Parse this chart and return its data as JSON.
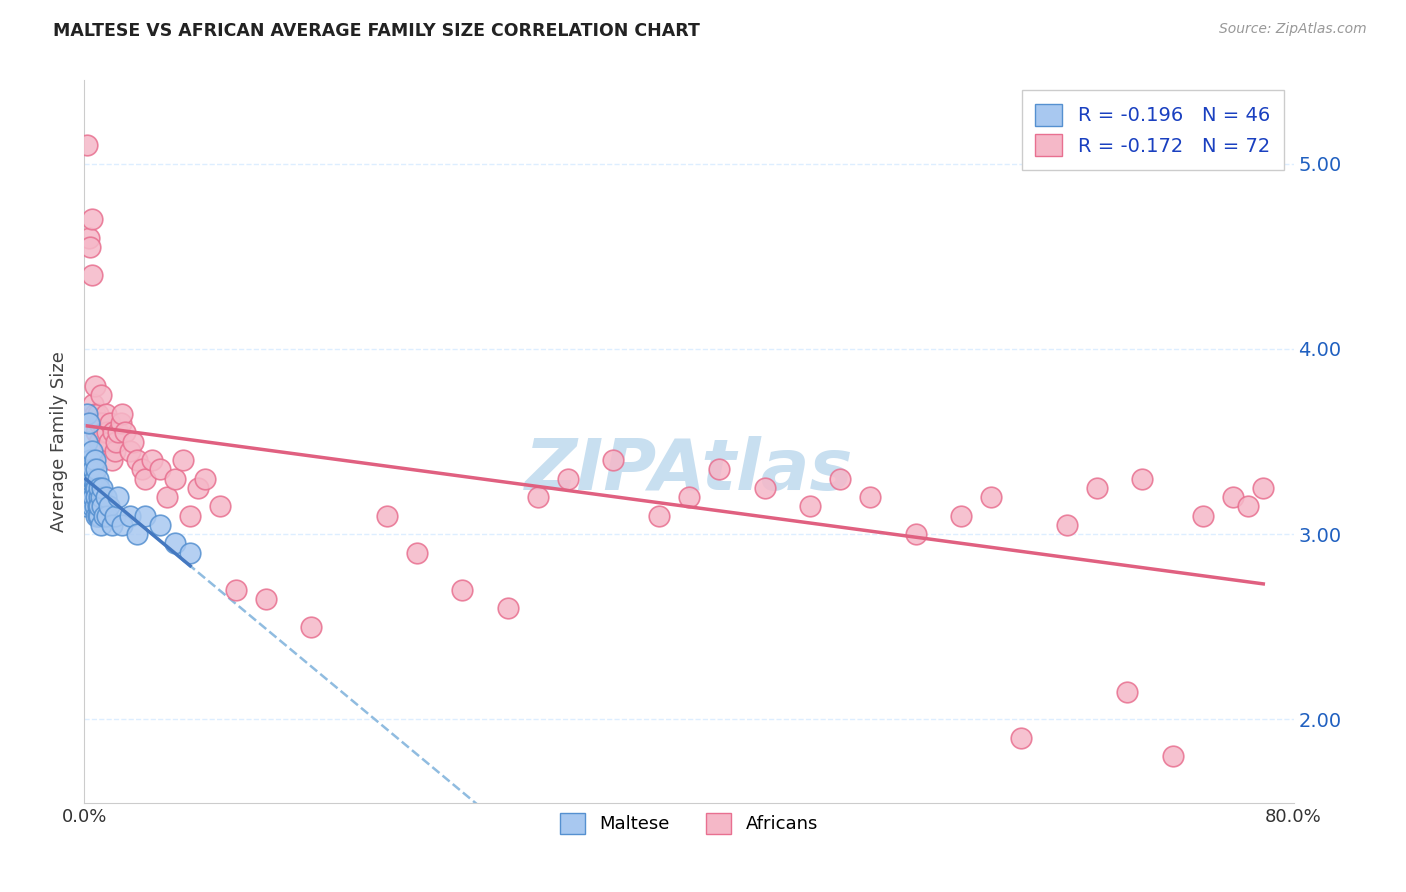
{
  "title": "MALTESE VS AFRICAN AVERAGE FAMILY SIZE CORRELATION CHART",
  "source": "Source: ZipAtlas.com",
  "ylabel": "Average Family Size",
  "xlim": [
    0.0,
    0.8
  ],
  "ylim": [
    1.55,
    5.45
  ],
  "yticks": [
    2.0,
    3.0,
    4.0,
    5.0
  ],
  "xtick_positions": [
    0.0,
    0.1,
    0.2,
    0.3,
    0.4,
    0.5,
    0.6,
    0.7,
    0.8
  ],
  "xtick_labels": [
    "0.0%",
    "",
    "",
    "",
    "",
    "",
    "",
    "",
    "80.0%"
  ],
  "maltese_color": "#a8c8f0",
  "african_color": "#f5b8c8",
  "maltese_edge_color": "#5590d0",
  "african_edge_color": "#e87090",
  "maltese_line_color": "#4478c0",
  "african_line_color": "#e06080",
  "dashed_line_color": "#90bce0",
  "grid_color": "#ddeeff",
  "watermark_color": "#c8dff0",
  "maltese_x": [
    0.001,
    0.002,
    0.002,
    0.003,
    0.003,
    0.004,
    0.004,
    0.005,
    0.005,
    0.005,
    0.006,
    0.006,
    0.006,
    0.007,
    0.007,
    0.007,
    0.007,
    0.008,
    0.008,
    0.008,
    0.008,
    0.009,
    0.009,
    0.009,
    0.01,
    0.01,
    0.01,
    0.01,
    0.011,
    0.011,
    0.012,
    0.012,
    0.013,
    0.014,
    0.015,
    0.016,
    0.018,
    0.02,
    0.022,
    0.025,
    0.03,
    0.035,
    0.04,
    0.05,
    0.06,
    0.07
  ],
  "maltese_y": [
    3.15,
    3.5,
    3.65,
    3.35,
    3.6,
    3.2,
    3.4,
    3.3,
    3.15,
    3.45,
    3.3,
    3.2,
    3.35,
    3.25,
    3.4,
    3.15,
    3.3,
    3.25,
    3.1,
    3.35,
    3.2,
    3.15,
    3.3,
    3.1,
    3.2,
    3.25,
    3.1,
    3.15,
    3.2,
    3.05,
    3.15,
    3.25,
    3.1,
    3.2,
    3.1,
    3.15,
    3.05,
    3.1,
    3.2,
    3.05,
    3.1,
    3.0,
    3.1,
    3.05,
    2.95,
    2.9
  ],
  "african_x": [
    0.002,
    0.003,
    0.004,
    0.005,
    0.005,
    0.006,
    0.007,
    0.007,
    0.008,
    0.008,
    0.009,
    0.01,
    0.01,
    0.011,
    0.012,
    0.013,
    0.014,
    0.015,
    0.016,
    0.017,
    0.018,
    0.019,
    0.02,
    0.021,
    0.022,
    0.024,
    0.025,
    0.027,
    0.03,
    0.032,
    0.035,
    0.038,
    0.04,
    0.045,
    0.05,
    0.055,
    0.06,
    0.065,
    0.07,
    0.075,
    0.08,
    0.09,
    0.1,
    0.12,
    0.15,
    0.2,
    0.22,
    0.25,
    0.28,
    0.3,
    0.32,
    0.35,
    0.38,
    0.4,
    0.42,
    0.45,
    0.48,
    0.5,
    0.52,
    0.55,
    0.58,
    0.6,
    0.62,
    0.65,
    0.67,
    0.69,
    0.7,
    0.72,
    0.74,
    0.76,
    0.77,
    0.78
  ],
  "african_y": [
    5.1,
    4.6,
    4.55,
    4.7,
    4.4,
    3.7,
    3.65,
    3.8,
    3.6,
    3.55,
    3.65,
    3.6,
    3.5,
    3.75,
    3.6,
    3.55,
    3.65,
    3.55,
    3.5,
    3.6,
    3.4,
    3.55,
    3.45,
    3.5,
    3.55,
    3.6,
    3.65,
    3.55,
    3.45,
    3.5,
    3.4,
    3.35,
    3.3,
    3.4,
    3.35,
    3.2,
    3.3,
    3.4,
    3.1,
    3.25,
    3.3,
    3.15,
    2.7,
    2.65,
    2.5,
    3.1,
    2.9,
    2.7,
    2.6,
    3.2,
    3.3,
    3.4,
    3.1,
    3.2,
    3.35,
    3.25,
    3.15,
    3.3,
    3.2,
    3.0,
    3.1,
    3.2,
    1.9,
    3.05,
    3.25,
    2.15,
    3.3,
    1.8,
    3.1,
    3.2,
    3.15,
    3.25
  ]
}
